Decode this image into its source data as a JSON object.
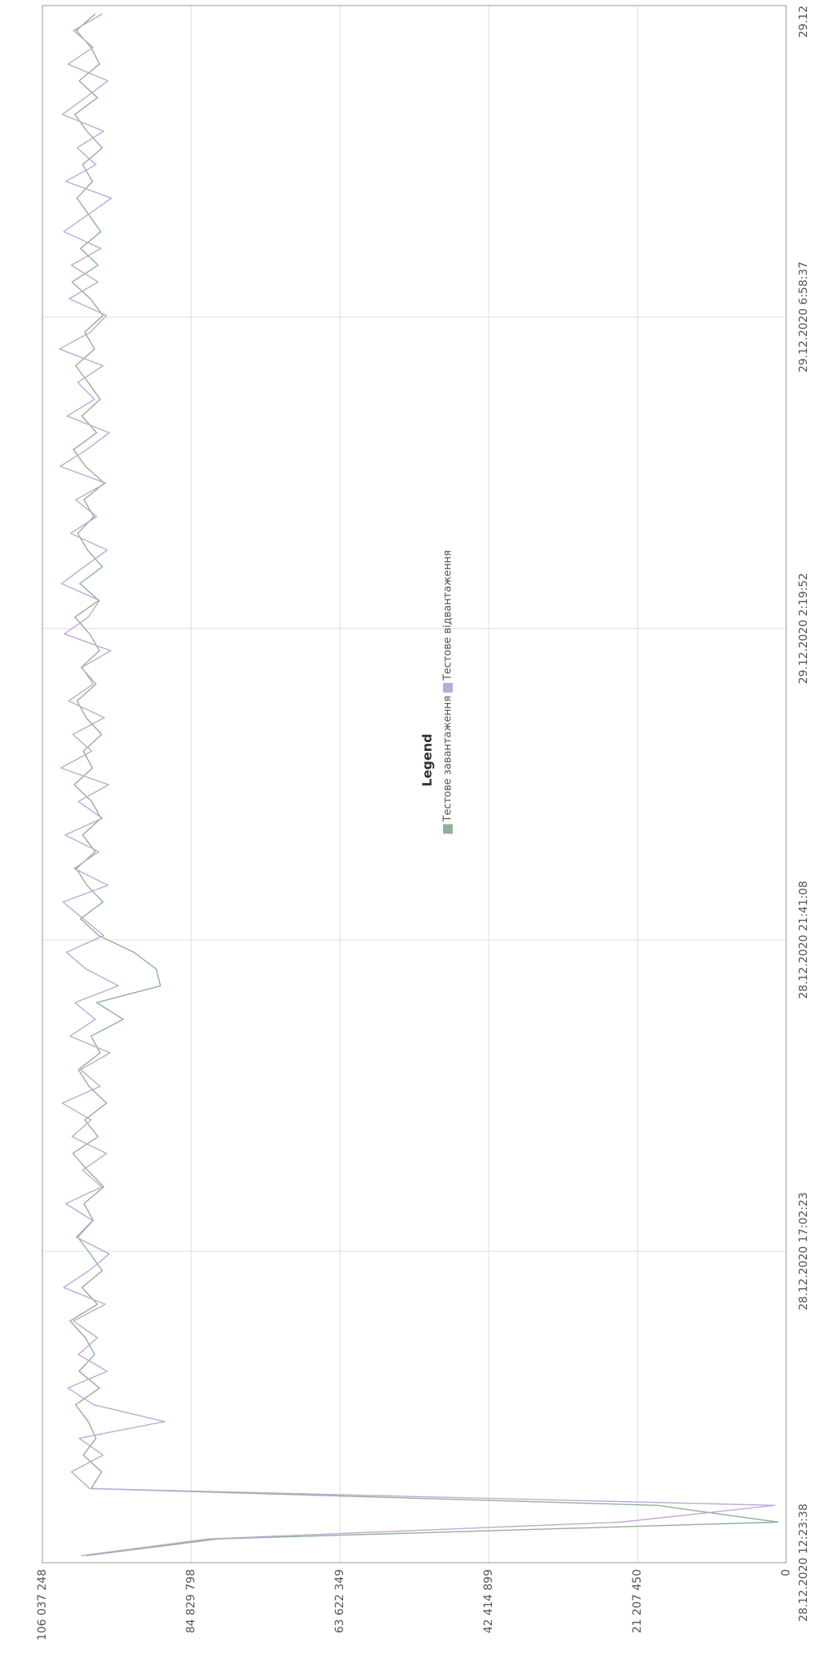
{
  "chart_data": {
    "type": "line",
    "legend_title": "Legend",
    "legend_position": "center",
    "grid": true,
    "ylim": [
      0,
      106037248
    ],
    "yticks": [
      0,
      {
        "value": 21207450,
        "label": "21 207 450"
      },
      {
        "value": 42414899,
        "label": "42 414 899"
      },
      {
        "value": 63622349,
        "label": "63 622 349"
      },
      {
        "value": 84829798,
        "label": "84 829 798"
      },
      {
        "value": 106037248,
        "label": "106 037 248"
      }
    ],
    "xlim": [
      "2020-12-28T12:23:38",
      "2020-12-29T11:37:22"
    ],
    "xticks": [
      {
        "value": "2020-12-28T12:23:38",
        "label": "28.12.2020 12:23:38"
      },
      {
        "value": "2020-12-28T17:02:23",
        "label": "28.12.2020 17:02:23"
      },
      {
        "value": "2020-12-28T21:41:08",
        "label": "28.12.2020 21:41:08"
      },
      {
        "value": "2020-12-29T02:19:52",
        "label": "29.12.2020 2:19:52"
      },
      {
        "value": "2020-12-29T06:58:37",
        "label": "29.12.2020 6:58:37"
      },
      {
        "value": "2020-12-29T11:37:22",
        "label": "29.12"
      }
    ],
    "x": [
      "2020-12-28T12:30:00",
      "2020-12-28T12:45:00",
      "2020-12-28T13:00:00",
      "2020-12-28T13:15:00",
      "2020-12-28T13:30:00",
      "2020-12-28T13:45:00",
      "2020-12-28T14:00:00",
      "2020-12-28T14:15:00",
      "2020-12-28T14:30:00",
      "2020-12-28T14:45:00",
      "2020-12-28T15:00:00",
      "2020-12-28T15:15:00",
      "2020-12-28T15:30:00",
      "2020-12-28T15:45:00",
      "2020-12-28T16:00:00",
      "2020-12-28T16:15:00",
      "2020-12-28T16:30:00",
      "2020-12-28T16:45:00",
      "2020-12-28T17:00:00",
      "2020-12-28T17:15:00",
      "2020-12-28T17:30:00",
      "2020-12-28T17:45:00",
      "2020-12-28T18:00:00",
      "2020-12-28T18:15:00",
      "2020-12-28T18:30:00",
      "2020-12-28T18:45:00",
      "2020-12-28T19:00:00",
      "2020-12-28T19:15:00",
      "2020-12-28T19:30:00",
      "2020-12-28T19:45:00",
      "2020-12-28T20:00:00",
      "2020-12-28T20:15:00",
      "2020-12-28T20:30:00",
      "2020-12-28T20:45:00",
      "2020-12-28T21:00:00",
      "2020-12-28T21:15:00",
      "2020-12-28T21:30:00",
      "2020-12-28T21:45:00",
      "2020-12-28T22:00:00",
      "2020-12-28T22:15:00",
      "2020-12-28T22:30:00",
      "2020-12-28T22:45:00",
      "2020-12-28T23:00:00",
      "2020-12-28T23:15:00",
      "2020-12-28T23:30:00",
      "2020-12-28T23:45:00",
      "2020-12-29T00:00:00",
      "2020-12-29T00:15:00",
      "2020-12-29T00:30:00",
      "2020-12-29T00:45:00",
      "2020-12-29T01:00:00",
      "2020-12-29T01:15:00",
      "2020-12-29T01:30:00",
      "2020-12-29T01:45:00",
      "2020-12-29T02:00:00",
      "2020-12-29T02:15:00",
      "2020-12-29T02:30:00",
      "2020-12-29T02:45:00",
      "2020-12-29T03:00:00",
      "2020-12-29T03:15:00",
      "2020-12-29T03:30:00",
      "2020-12-29T03:45:00",
      "2020-12-29T04:00:00",
      "2020-12-29T04:15:00",
      "2020-12-29T04:30:00",
      "2020-12-29T04:45:00",
      "2020-12-29T05:00:00",
      "2020-12-29T05:15:00",
      "2020-12-29T05:30:00",
      "2020-12-29T05:45:00",
      "2020-12-29T06:00:00",
      "2020-12-29T06:15:00",
      "2020-12-29T06:30:00",
      "2020-12-29T06:45:00",
      "2020-12-29T07:00:00",
      "2020-12-29T07:15:00",
      "2020-12-29T07:30:00",
      "2020-12-29T07:45:00",
      "2020-12-29T08:00:00",
      "2020-12-29T08:15:00",
      "2020-12-29T08:30:00",
      "2020-12-29T08:45:00",
      "2020-12-29T09:00:00",
      "2020-12-29T09:15:00",
      "2020-12-29T09:30:00",
      "2020-12-29T09:45:00",
      "2020-12-29T10:00:00",
      "2020-12-29T10:15:00",
      "2020-12-29T10:30:00",
      "2020-12-29T10:45:00",
      "2020-12-29T11:00:00",
      "2020-12-29T11:15:00",
      "2020-12-29T11:30:00"
    ],
    "series": [
      {
        "name": "Тестове завантаження",
        "color": "#8fb097",
        "values": [
          99800000,
          80900000,
          1200000,
          18400000,
          99100000,
          97600000,
          100200000,
          98400000,
          99500000,
          101300000,
          97900000,
          100800000,
          98600000,
          99900000,
          102100000,
          98200000,
          100400000,
          97500000,
          99200000,
          101000000,
          98800000,
          100100000,
          97300000,
          99600000,
          101700000,
          98100000,
          100000000,
          96900000,
          99400000,
          100900000,
          97800000,
          99100000,
          94500000,
          98300000,
          89200000,
          89800000,
          93000000,
          98000000,
          100600000,
          97400000,
          99700000,
          101200000,
          98500000,
          100300000,
          97700000,
          99000000,
          101500000,
          98900000,
          100200000,
          97600000,
          99800000,
          101100000,
          98400000,
          100500000,
          97900000,
          99300000,
          101400000,
          98000000,
          100700000,
          97500000,
          99600000,
          101000000,
          98700000,
          100100000,
          97200000,
          99900000,
          101600000,
          98300000,
          100400000,
          97800000,
          99500000,
          101300000,
          98600000,
          100000000,
          97400000,
          99200000,
          101800000,
          98100000,
          100600000,
          97700000,
          99400000,
          101100000,
          98900000,
          100300000,
          97500000,
          99700000,
          101400000,
          98200000,
          100800000,
          97900000,
          99100000,
          101200000,
          98500000
        ]
      },
      {
        "name": "Тестове відвантаження",
        "color": "#bfa8d6",
        "values": [
          100500000,
          82300000,
          23500000,
          1600000,
          99300000,
          101900000,
          97400000,
          100800000,
          88600000,
          98700000,
          102400000,
          96800000,
          100900000,
          98200000,
          101600000,
          97100000,
          103000000,
          99400000,
          96500000,
          101200000,
          98900000,
          102700000,
          97600000,
          100300000,
          96900000,
          101800000,
          99100000,
          103200000,
          97800000,
          100600000,
          96400000,
          102100000,
          98500000,
          101400000,
          95200000,
          99800000,
          102600000,
          97300000,
          100200000,
          103100000,
          96700000,
          101500000,
          98000000,
          102800000,
          97500000,
          100900000,
          96600000,
          103400000,
          99000000,
          101700000,
          97200000,
          102300000,
          98800000,
          100400000,
          96300000,
          102900000,
          99500000,
          97900000,
          103300000,
          100100000,
          96800000,
          102000000,
          98300000,
          101300000,
          97000000,
          103500000,
          99700000,
          96500000,
          102500000,
          98600000,
          101000000,
          97400000,
          103600000,
          99200000,
          96900000,
          102200000,
          98100000,
          101900000,
          97700000,
          103000000,
          99600000,
          96200000,
          102700000,
          98400000,
          101100000,
          97300000,
          103200000,
          99900000,
          96700000,
          102400000,
          98800000,
          101600000,
          97500000
        ]
      }
    ]
  }
}
